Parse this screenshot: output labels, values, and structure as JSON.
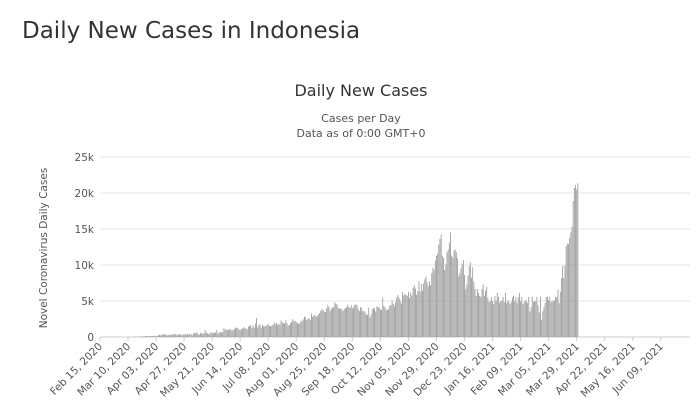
{
  "page": {
    "heading": "Daily New Cases in Indonesia"
  },
  "chart_data": {
    "type": "bar",
    "title": "Daily New Cases",
    "subtitle_line1": "Cases per Day",
    "subtitle_line2": "Data as of 0:00 GMT+0",
    "ylabel": "Novel Coronavirus Daily Cases",
    "xlabel": "",
    "ylim": [
      0,
      25000
    ],
    "grid": true,
    "bar_color": "#999999",
    "y_ticks": [
      {
        "value": 0,
        "label": "0"
      },
      {
        "value": 5000,
        "label": "5k"
      },
      {
        "value": 10000,
        "label": "10k"
      },
      {
        "value": 15000,
        "label": "15k"
      },
      {
        "value": 20000,
        "label": "20k"
      },
      {
        "value": 25000,
        "label": "25k"
      }
    ],
    "x_ticks": [
      {
        "date": "2020-02-15",
        "label": "Feb 15, 2020"
      },
      {
        "date": "2020-03-10",
        "label": "Mar 10, 2020"
      },
      {
        "date": "2020-04-03",
        "label": "Apr 03, 2020"
      },
      {
        "date": "2020-04-27",
        "label": "Apr 27, 2020"
      },
      {
        "date": "2020-05-21",
        "label": "May 21, 2020"
      },
      {
        "date": "2020-06-14",
        "label": "Jun 14, 2020"
      },
      {
        "date": "2020-07-08",
        "label": "Jul 08, 2020"
      },
      {
        "date": "2020-08-01",
        "label": "Aug 01, 2020"
      },
      {
        "date": "2020-08-25",
        "label": "Aug 25, 2020"
      },
      {
        "date": "2020-09-18",
        "label": "Sep 18, 2020"
      },
      {
        "date": "2020-10-12",
        "label": "Oct 12, 2020"
      },
      {
        "date": "2020-11-05",
        "label": "Nov 05, 2020"
      },
      {
        "date": "2020-11-29",
        "label": "Nov 29, 2020"
      },
      {
        "date": "2020-12-23",
        "label": "Dec 23, 2020"
      },
      {
        "date": "2021-01-16",
        "label": "Jan 16, 2021"
      },
      {
        "date": "2021-02-09",
        "label": "Feb 09, 2021"
      },
      {
        "date": "2021-03-05",
        "label": "Mar 05, 2021"
      },
      {
        "date": "2021-03-29",
        "label": "Mar 29, 2021"
      },
      {
        "date": "2021-04-22",
        "label": "Apr 22, 2021"
      },
      {
        "date": "2021-05-16",
        "label": "May 16, 2021"
      },
      {
        "date": "2021-06-09",
        "label": "Jun 09, 2021"
      }
    ],
    "x_range": [
      "2020-02-15",
      "2021-07-04"
    ],
    "daily_dates": {
      "start": "2020-02-15",
      "end": "2021-07-04"
    },
    "daily_values": [
      0,
      0,
      0,
      0,
      0,
      0,
      0,
      0,
      0,
      0,
      0,
      0,
      0,
      0,
      0,
      0,
      0,
      2,
      0,
      0,
      0,
      0,
      0,
      0,
      8,
      17,
      0,
      0,
      0,
      27,
      21,
      38,
      32,
      55,
      81,
      64,
      65,
      106,
      105,
      104,
      153,
      109,
      130,
      129,
      114,
      149,
      113,
      196,
      106,
      181,
      218,
      337,
      219,
      330,
      399,
      407,
      282,
      316,
      220,
      297,
      325,
      375,
      283,
      357,
      436,
      390,
      214,
      415,
      347,
      347,
      260,
      395,
      337,
      433,
      253,
      484,
      367,
      387,
      395,
      233,
      484,
      533,
      568,
      689,
      387,
      336,
      591,
      448,
      529,
      496,
      973,
      634,
      479,
      415,
      467,
      687,
      526,
      609,
      557,
      703,
      993,
      467,
      684,
      631,
      672,
      641,
      1241,
      1043,
      1031,
      949,
      1014,
      1038,
      1111,
      847,
      1017,
      1106,
      1331,
      1240,
      1226,
      1043,
      954,
      1051,
      1178,
      1385,
      1209,
      1198,
      1082,
      1447,
      1607,
      1624,
      1268,
      1611,
      1294,
      1853,
      2657,
      1329,
      1681,
      1752,
      1282,
      1689,
      1522,
      1462,
      1529,
      1693,
      1761,
      1525,
      1519,
      1547,
      1679,
      2040,
      1815,
      1922,
      1679,
      1853,
      1709,
      2307,
      2081,
      1904,
      1882,
      2345,
      1942,
      1560,
      1678,
      1893,
      2090,
      2473,
      2198,
      2266,
      2081,
      1873,
      1902,
      1904,
      2274,
      2170,
      2447,
      2858,
      2719,
      2306,
      2584,
      2534,
      2370,
      3269,
      2775,
      3003,
      3046,
      2842,
      2887,
      3141,
      3307,
      3636,
      3861,
      3737,
      3509,
      3444,
      3989,
      4465,
      4168,
      3636,
      3963,
      4071,
      4176,
      4823,
      4634,
      4494,
      4002,
      3989,
      3906,
      3874,
      3622,
      3874,
      4007,
      4145,
      4497,
      4172,
      4050,
      4432,
      3989,
      4094,
      4442,
      4556,
      4432,
      3906,
      3602,
      4171,
      4004,
      3607,
      3602,
      3373,
      3027,
      3143,
      4065,
      2696,
      3143,
      3856,
      4029,
      3989,
      3565,
      4262,
      4173,
      4063,
      3779,
      3807,
      5444,
      4301,
      4106,
      3770,
      3778,
      3880,
      4360,
      4442,
      5092,
      4617,
      4262,
      4798,
      5534,
      5828,
      5418,
      4998,
      4617,
      6267,
      5803,
      6027,
      5803,
      5754,
      6267,
      5418,
      6131,
      5754,
      6877,
      7203,
      6725,
      5854,
      6339,
      7751,
      6310,
      7354,
      6432,
      7445,
      8002,
      8369,
      7604,
      7047,
      7751,
      7203,
      8854,
      9640,
      9321,
      10617,
      11278,
      11557,
      12818,
      13632,
      14224,
      11287,
      10994,
      9321,
      10092,
      11788,
      12156,
      13094,
      14518,
      11287,
      10994,
      12001,
      12156,
      11749,
      10921,
      8435,
      8844,
      9546,
      10167,
      10685,
      8600,
      6635,
      7287,
      8493,
      9870,
      10379,
      8232,
      9686,
      7735,
      6680,
      5715,
      6680,
      6130,
      5714,
      5585,
      6680,
      7321,
      5712,
      6445,
      6971,
      5431,
      4862,
      5008,
      5549,
      4952,
      4561,
      5714,
      5008,
      6135,
      5585,
      4711,
      4952,
      5008,
      5585,
      4862,
      6135,
      4711,
      5097,
      4952,
      4561,
      4862,
      5501,
      5714,
      5008,
      5585,
      4711,
      5549,
      6135,
      4952,
      5560,
      4561,
      4862,
      5097,
      5008,
      4711,
      5549,
      3567,
      4126,
      5585,
      4862,
      5008,
      4952,
      5560,
      4369,
      3409,
      5560,
      2385,
      3567,
      4126,
      4711,
      5549,
      5560,
      5097,
      5585,
      4862,
      5008,
      4952,
      5097,
      5585,
      5549,
      6565,
      4711,
      6293,
      8161,
      9868,
      8189,
      9944,
      12624,
      12990,
      12906,
      13737,
      14536,
      15308,
      18872,
      20694,
      21095,
      20467,
      21342
    ]
  }
}
